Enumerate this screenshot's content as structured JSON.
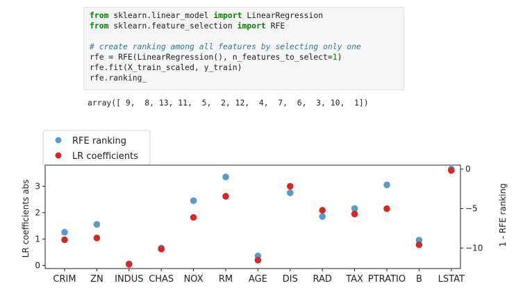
{
  "code": {
    "line1_kw1": "from",
    "line1_mod": " sklearn.linear_model ",
    "line1_kw2": "import",
    "line1_name": " LinearRegression",
    "line2_kw1": "from",
    "line2_mod": " sklearn.feature_selection ",
    "line2_kw2": "import",
    "line2_name": " RFE",
    "comment": "# create ranking among all features by selecting only one",
    "line4a": "rfe = RFE(LinearRegression(), n_features_to_select=",
    "line4num": "1",
    "line4b": ")",
    "line5": "rfe.fit(X_train_scaled, y_train)",
    "line6": "rfe.ranking_",
    "output": "array([ 9,  8, 13, 11,  5,  2, 12,  4,  7,  6,  3, 10,  1])"
  },
  "chart_data": {
    "type": "scatter",
    "categories": [
      "CRIM",
      "ZN",
      "INDUS",
      "CHAS",
      "NOX",
      "RM",
      "AGE",
      "DIS",
      "RAD",
      "TAX",
      "PTRATIO",
      "B",
      "LSTAT"
    ],
    "series": [
      {
        "name": "RFE ranking",
        "axis": "right",
        "color": "#5b9bc8",
        "values": [
          -8,
          -7,
          -12,
          -10,
          -4,
          -1,
          -11,
          -3,
          -6,
          -5,
          -2,
          -9,
          0
        ]
      },
      {
        "name": "LR coefficients",
        "axis": "left",
        "color": "#d62728",
        "values": [
          0.97,
          1.04,
          0.04,
          0.62,
          1.82,
          2.62,
          0.2,
          3.0,
          2.09,
          1.95,
          2.15,
          0.78,
          3.6
        ]
      }
    ],
    "ylabel": "LR coefficients abs",
    "y2label": "1 - RFE ranking",
    "ylim": [
      -0.12,
      3.8
    ],
    "y2lim": [
      -12.6,
      0.5
    ],
    "yticks": [
      0,
      1,
      2,
      3
    ],
    "y2ticks": [
      0,
      -5,
      -10
    ],
    "legend": "top-left-outside",
    "grid": false
  }
}
